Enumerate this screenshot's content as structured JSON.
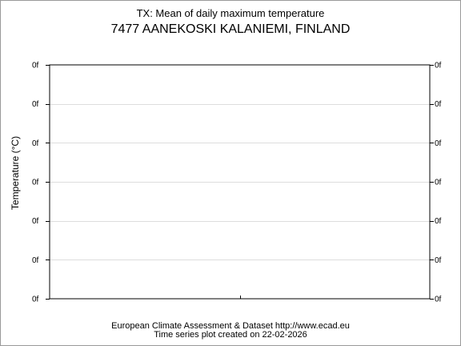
{
  "chart_data": {
    "type": "line",
    "title": "TX: Mean of daily maximum temperature",
    "subtitle": "7477 AANEKOSKI KALANIEMI, FINLAND",
    "xlabel": "",
    "ylabel": "Temperature (°C)",
    "y_tick_labels": [
      "0f",
      "0f",
      "0f",
      "0f",
      "0f",
      "0f",
      "0f"
    ],
    "x_tick_labels": [],
    "series": [],
    "grid": true
  },
  "footer": {
    "line1": "European Climate Assessment & Dataset  http://www.ecad.eu",
    "line2": "Time series plot created on 22-02-2026"
  }
}
